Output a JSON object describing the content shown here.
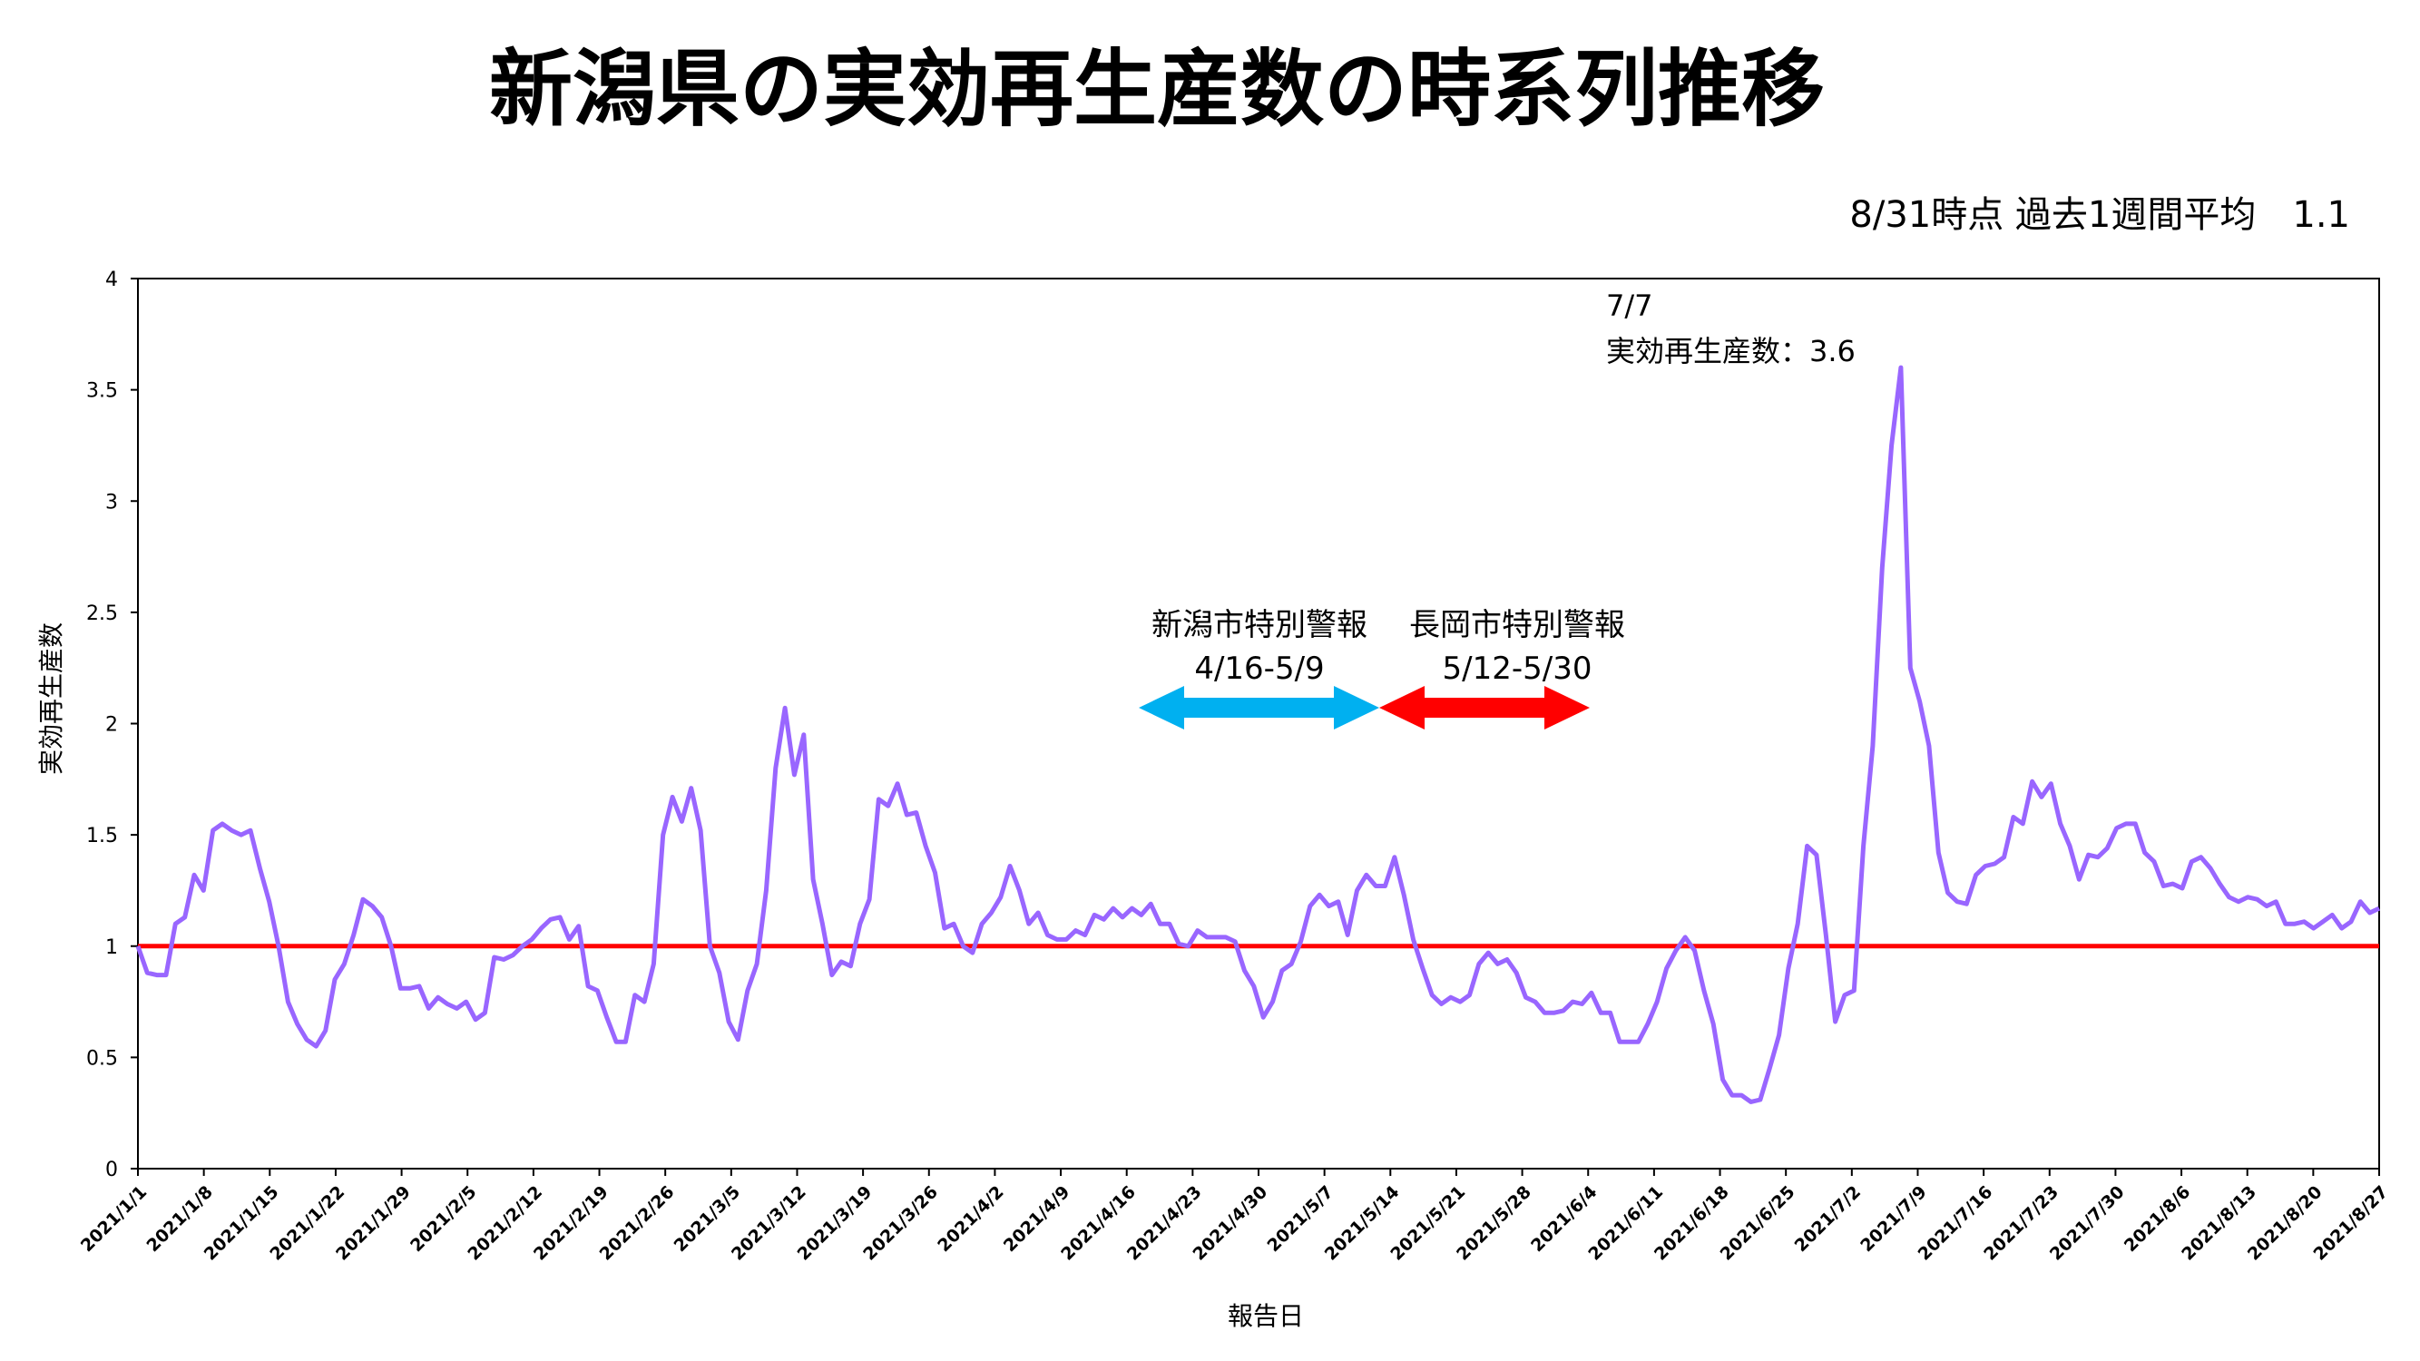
{
  "chart_data": {
    "type": "line",
    "title": "新潟県の実効再生産数の時系列推移",
    "subtitle": "8/31時点 過去1週間平均　1.1",
    "xlabel": "報告日",
    "ylabel": "実効再生産数",
    "ylim": [
      0,
      4
    ],
    "yticks": [
      "0",
      "0.5",
      "1",
      "1.5",
      "2",
      "2.5",
      "3",
      "3.5",
      "4"
    ],
    "xticks": [
      "2021/1/1",
      "2021/1/8",
      "2021/1/15",
      "2021/1/22",
      "2021/1/29",
      "2021/2/5",
      "2021/2/12",
      "2021/2/19",
      "2021/2/26",
      "2021/3/5",
      "2021/3/12",
      "2021/3/19",
      "2021/3/26",
      "2021/4/2",
      "2021/4/9",
      "2021/4/16",
      "2021/4/23",
      "2021/4/30",
      "2021/5/7",
      "2021/5/14",
      "2021/5/21",
      "2021/5/28",
      "2021/6/4",
      "2021/6/11",
      "2021/6/18",
      "2021/6/25",
      "2021/7/2",
      "2021/7/9",
      "2021/7/16",
      "2021/7/23",
      "2021/7/30",
      "2021/8/6",
      "2021/8/13",
      "2021/8/20",
      "2021/8/27"
    ],
    "x_start": "2021/1/1",
    "x_end": "2021/8/27",
    "grid": false,
    "reference_line": {
      "y": 1,
      "color": "#ff0000"
    },
    "series": [
      {
        "color": "#9966ff",
        "values": [
          1.0,
          0.88,
          0.87,
          0.87,
          1.1,
          1.13,
          1.32,
          1.25,
          1.52,
          1.55,
          1.52,
          1.5,
          1.52,
          1.35,
          1.2,
          1.0,
          0.75,
          0.65,
          0.58,
          0.55,
          0.62,
          0.85,
          0.92,
          1.05,
          1.21,
          1.18,
          1.13,
          1.0,
          0.81,
          0.81,
          0.82,
          0.72,
          0.77,
          0.74,
          0.72,
          0.75,
          0.67,
          0.7,
          0.95,
          0.94,
          0.96,
          1.0,
          1.03,
          1.08,
          1.12,
          1.13,
          1.03,
          1.09,
          0.82,
          0.8,
          0.68,
          0.57,
          0.57,
          0.78,
          0.75,
          0.92,
          1.5,
          1.67,
          1.56,
          1.71,
          1.52,
          1.0,
          0.88,
          0.66,
          0.58,
          0.8,
          0.92,
          1.25,
          1.8,
          2.07,
          1.77,
          1.95,
          1.3,
          1.1,
          0.87,
          0.93,
          0.91,
          1.1,
          1.21,
          1.66,
          1.63,
          1.73,
          1.59,
          1.6,
          1.45,
          1.33,
          1.08,
          1.1,
          1.0,
          0.97,
          1.1,
          1.15,
          1.22,
          1.36,
          1.25,
          1.1,
          1.15,
          1.05,
          1.03,
          1.03,
          1.07,
          1.05,
          1.14,
          1.12,
          1.17,
          1.13,
          1.17,
          1.14,
          1.19,
          1.1,
          1.1,
          1.01,
          1.0,
          1.07,
          1.04,
          1.04,
          1.04,
          1.02,
          0.89,
          0.82,
          0.68,
          0.75,
          0.89,
          0.92,
          1.02,
          1.18,
          1.23,
          1.18,
          1.2,
          1.05,
          1.25,
          1.32,
          1.27,
          1.27,
          1.4,
          1.23,
          1.03,
          0.9,
          0.78,
          0.74,
          0.77,
          0.75,
          0.78,
          0.92,
          0.97,
          0.92,
          0.94,
          0.88,
          0.77,
          0.75,
          0.7,
          0.7,
          0.71,
          0.75,
          0.74,
          0.79,
          0.7,
          0.7,
          0.57,
          0.57,
          0.57,
          0.65,
          0.75,
          0.9,
          0.98,
          1.04,
          0.98,
          0.8,
          0.65,
          0.4,
          0.33,
          0.33,
          0.3,
          0.31,
          0.45,
          0.6,
          0.9,
          1.1,
          1.45,
          1.41,
          1.05,
          0.66,
          0.78,
          0.8,
          1.45,
          1.9,
          2.7,
          3.25,
          3.6,
          2.25,
          2.1,
          1.9,
          1.42,
          1.24,
          1.2,
          1.19,
          1.32,
          1.36,
          1.37,
          1.4,
          1.58,
          1.55,
          1.74,
          1.67,
          1.73,
          1.55,
          1.45,
          1.3,
          1.41,
          1.4,
          1.44,
          1.53,
          1.55,
          1.55,
          1.42,
          1.38,
          1.27,
          1.28,
          1.26,
          1.38,
          1.4,
          1.35,
          1.28,
          1.22,
          1.2,
          1.22,
          1.21,
          1.18,
          1.2,
          1.1,
          1.1,
          1.11,
          1.08,
          1.11,
          1.14,
          1.08,
          1.11,
          1.2,
          1.15,
          1.17
        ]
      }
    ],
    "annotations": [
      {
        "label": "新潟市特別警報",
        "range": "4/16-5/9",
        "color": "#00b0f0"
      },
      {
        "label": "長岡市特別警報",
        "range": "5/12-5/30",
        "color": "#ff0000"
      }
    ],
    "peak_annotation": {
      "date": "7/7",
      "text": "実効再生産数：3.6"
    }
  }
}
